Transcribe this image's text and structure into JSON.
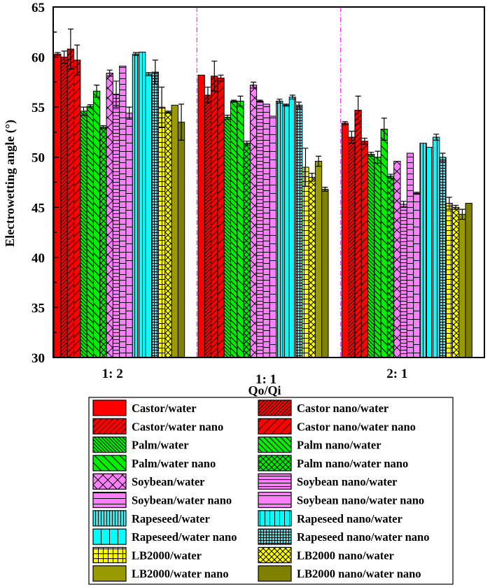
{
  "chart_data": {
    "type": "bar",
    "title": "",
    "xlabel": "Qo/Qi",
    "ylabel": "Electrowetting angle (°)",
    "ylim": [
      30,
      65
    ],
    "yticks": [
      30,
      35,
      40,
      45,
      50,
      55,
      60,
      65
    ],
    "grid": false,
    "categories": [
      "1: 2",
      "1: 1",
      "2: 1"
    ],
    "separators": "magenta dash-dot vertical lines between groups",
    "separator_color": "#ff33ff",
    "legend_position": "bottom",
    "series": [
      {
        "name": "Castor/water",
        "color": "#ff0000",
        "pattern": "solid",
        "values": [
          60.3,
          58.2,
          53.4
        ],
        "errors": [
          0.15,
          0.0,
          0.15
        ]
      },
      {
        "name": "Castor nano/water",
        "color": "#ff0000",
        "pattern": "dense-diag-fwd",
        "values": [
          60.0,
          56.2,
          52.0
        ],
        "errors": [
          0.6,
          0.8,
          0.6
        ]
      },
      {
        "name": "Castor/water nano",
        "color": "#ff0000",
        "pattern": "diag-fwd",
        "values": [
          60.8,
          58.1,
          54.7
        ],
        "errors": [
          2.0,
          1.5,
          1.4
        ]
      },
      {
        "name": "Castor nano/water nano",
        "color": "#ff0000",
        "pattern": "sparse-diag-fwd",
        "values": [
          59.7,
          57.9,
          51.6
        ],
        "errors": [
          1.5,
          0.3,
          0.3
        ]
      },
      {
        "name": "Palm/water",
        "color": "#00ee00",
        "pattern": "dense-diag-back",
        "values": [
          54.6,
          54.0,
          50.3
        ],
        "errors": [
          0.4,
          0.2,
          0.2
        ]
      },
      {
        "name": "Palm nano/water",
        "color": "#00ee00",
        "pattern": "diag-back",
        "values": [
          55.1,
          55.6,
          50.0
        ],
        "errors": [
          0.15,
          0.1,
          0.6
        ]
      },
      {
        "name": "Palm/water nano",
        "color": "#00ee00",
        "pattern": "sparse-diag-back",
        "values": [
          56.6,
          55.6,
          52.8
        ],
        "errors": [
          0.6,
          0.5,
          1.1
        ]
      },
      {
        "name": "Palm nano/water nano",
        "color": "#00ee00",
        "pattern": "crosshatch-diag",
        "values": [
          53.0,
          51.4,
          48.1
        ],
        "errors": [
          0.15,
          0.2,
          0.2
        ]
      },
      {
        "name": "Soybean/water",
        "color": "#ff80ff",
        "pattern": "crosshatch-diag-sparse",
        "values": [
          58.4,
          57.2,
          49.6
        ],
        "errors": [
          0.3,
          0.3,
          0.0
        ]
      },
      {
        "name": "Soybean nano/water",
        "color": "#ff80ff",
        "pattern": "dense-horizontal",
        "values": [
          56.3,
          55.6,
          45.3
        ],
        "errors": [
          1.3,
          0.1,
          0.3
        ]
      },
      {
        "name": "Soybean/water nano",
        "color": "#ff80ff",
        "pattern": "horizontal",
        "values": [
          59.1,
          55.3,
          50.4
        ],
        "errors": [
          0.0,
          0.0,
          0.0
        ]
      },
      {
        "name": "Soybean nano/water nano",
        "color": "#ff80ff",
        "pattern": "sparse-horizontal",
        "values": [
          54.4,
          54.1,
          46.4
        ],
        "errors": [
          0.6,
          0.0,
          0.1
        ]
      },
      {
        "name": "Rapeseed/water",
        "color": "#00ffff",
        "pattern": "dense-vertical",
        "values": [
          60.3,
          55.6,
          51.4
        ],
        "errors": [
          0.15,
          0.2,
          0.0
        ]
      },
      {
        "name": "Rapeseed nano/water",
        "color": "#00ffff",
        "pattern": "vertical",
        "values": [
          60.5,
          55.2,
          51.0
        ],
        "errors": [
          0.0,
          0.1,
          0.0
        ]
      },
      {
        "name": "Rapeseed/water nano",
        "color": "#00ffff",
        "pattern": "sparse-vertical",
        "values": [
          58.3,
          56.0,
          52.0
        ],
        "errors": [
          0.15,
          0.2,
          0.3
        ]
      },
      {
        "name": "Rapeseed nano/water nano",
        "color": "#00ffff",
        "pattern": "grid",
        "values": [
          58.5,
          55.2,
          50.0
        ],
        "errors": [
          1.2,
          0.3,
          0.4
        ]
      },
      {
        "name": "LB2000/water",
        "color": "#ffff00",
        "pattern": "grid-sparse",
        "values": [
          55.0,
          49.0,
          45.4
        ],
        "errors": [
          2.0,
          1.9,
          0.6
        ]
      },
      {
        "name": "LB2000 nano/water",
        "color": "#ffff00",
        "pattern": "crosshatch-diag",
        "values": [
          54.5,
          48.0,
          45.0
        ],
        "errors": [
          0.1,
          0.4,
          0.2
        ]
      },
      {
        "name": "LB2000/water nano",
        "color": "#999900",
        "pattern": "solid",
        "values": [
          55.2,
          49.6,
          44.3
        ],
        "errors": [
          0.0,
          0.5,
          0.5
        ]
      },
      {
        "name": "LB2000 nano/water nano",
        "color": "#808000",
        "pattern": "solid-dark",
        "values": [
          53.5,
          46.8,
          45.4
        ],
        "errors": [
          1.8,
          0.2,
          0.0
        ]
      }
    ]
  }
}
